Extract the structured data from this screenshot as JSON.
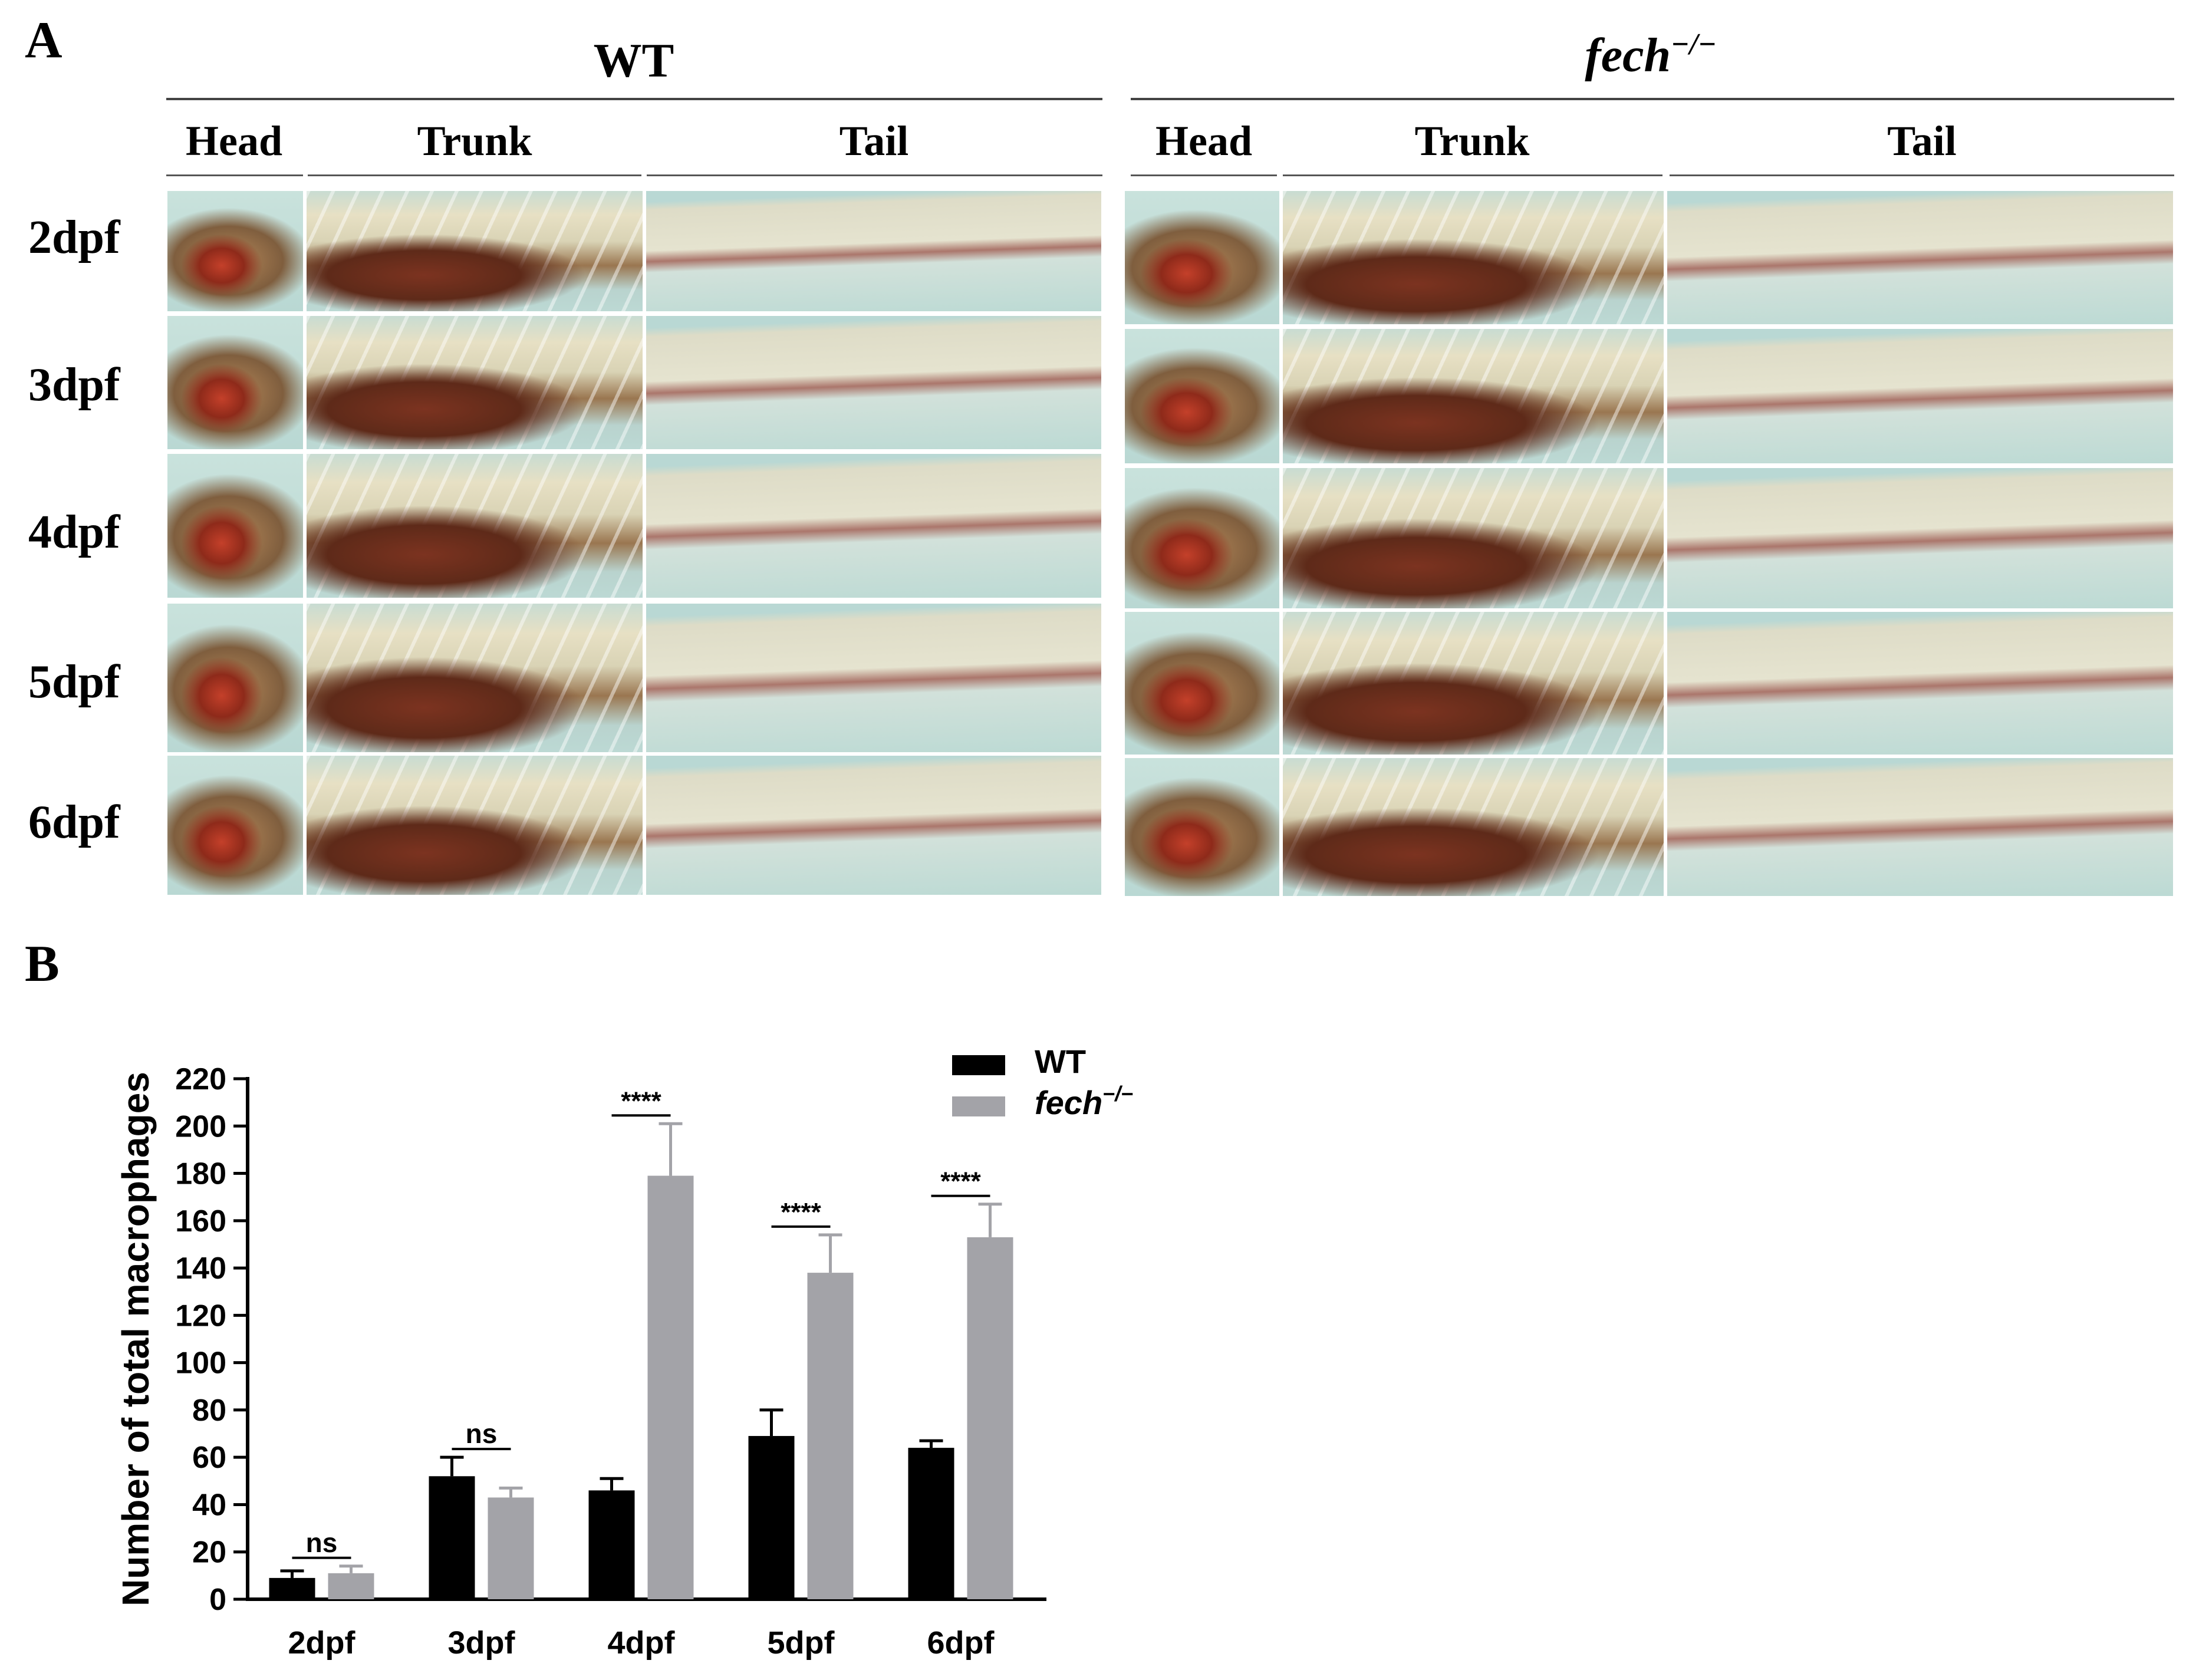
{
  "panel_a": {
    "letter": "A",
    "groups": [
      {
        "title": "WT",
        "sections": [
          "Head",
          "Trunk",
          "Tail"
        ]
      },
      {
        "title": "fech",
        "title_sup": "−/−",
        "sections": [
          "Head",
          "Trunk",
          "Tail"
        ]
      }
    ],
    "rows": [
      "2dpf",
      "3dpf",
      "4dpf",
      "5dpf",
      "6dpf"
    ]
  },
  "panel_b": {
    "letter": "B"
  },
  "chart_data": {
    "type": "bar",
    "title": "",
    "xlabel": "",
    "ylabel": "Number of total macrophages",
    "categories": [
      "2dpf",
      "3dpf",
      "4dpf",
      "5dpf",
      "6dpf"
    ],
    "ylim": [
      0,
      220
    ],
    "yticks": [
      0,
      20,
      40,
      60,
      80,
      100,
      120,
      140,
      160,
      180,
      200,
      220
    ],
    "series": [
      {
        "name": "WT",
        "color": "#000000",
        "values": [
          9,
          52,
          46,
          69,
          64
        ],
        "errors": [
          3,
          8,
          5,
          11,
          3
        ]
      },
      {
        "name": "fech",
        "name_sup": "−/−",
        "color": "#a3a3a8",
        "values": [
          11,
          43,
          179,
          138,
          153
        ],
        "errors": [
          3,
          4,
          22,
          16,
          14
        ]
      }
    ],
    "significance": [
      "ns",
      "ns",
      "****",
      "****",
      "****"
    ],
    "legend_position": "top-right"
  }
}
